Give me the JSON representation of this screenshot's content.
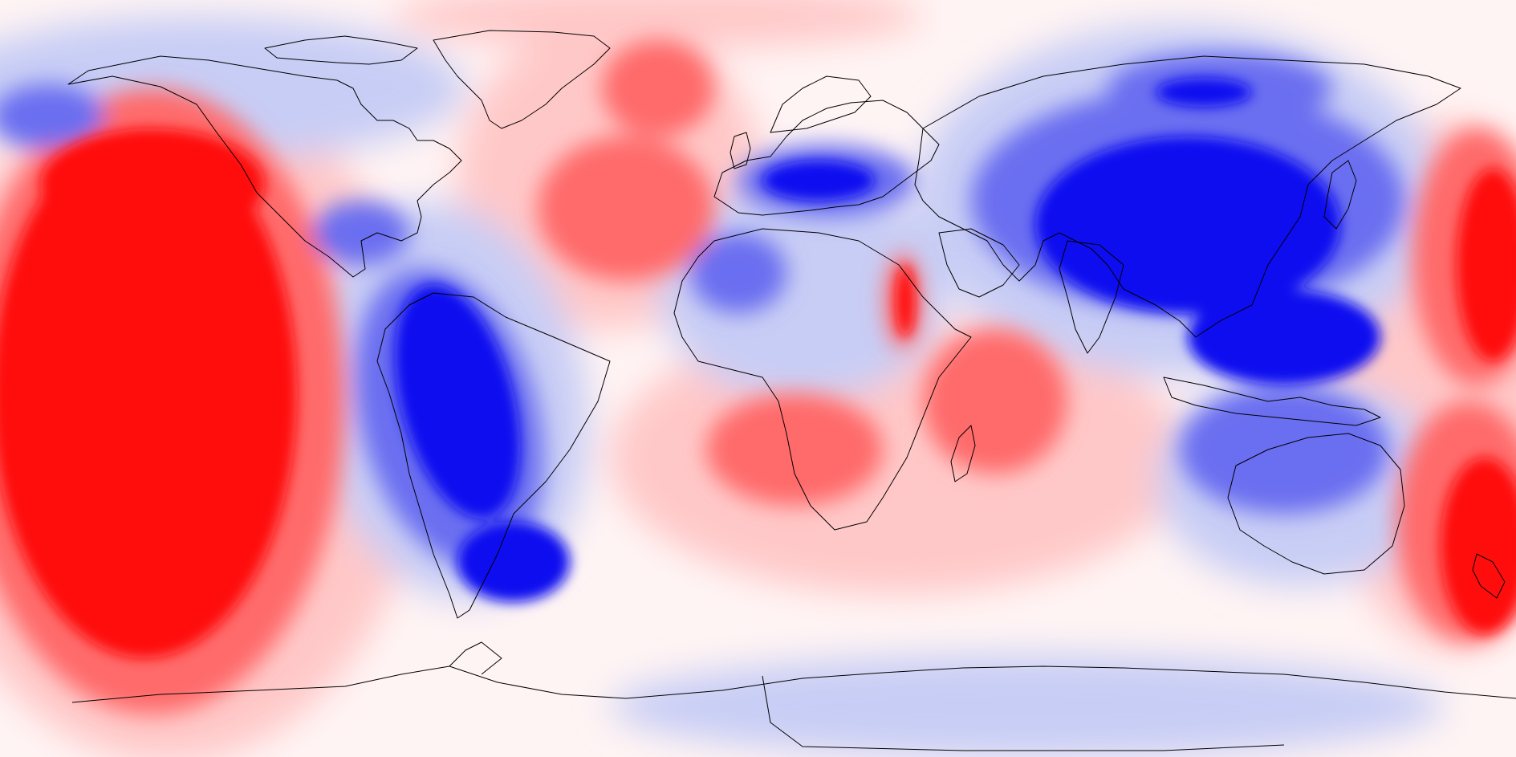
{
  "map": {
    "projection": "equirectangular",
    "coastline_color": "#000000",
    "palette": {
      "strong_positive": "#ff0a0a",
      "positive": "#ff6a6a",
      "weak_positive": "#ffc8c8",
      "neutral": "#fff4f4",
      "weak_negative": "#c8cdf5",
      "negative": "#6a6ef0",
      "strong_negative": "#0a0af0"
    }
  }
}
